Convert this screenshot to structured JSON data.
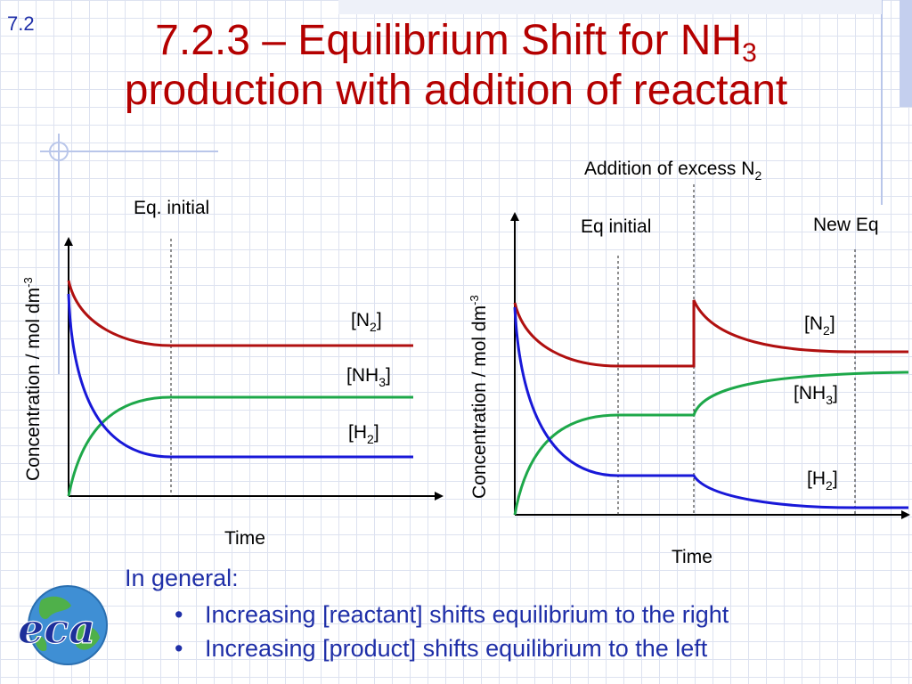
{
  "slide": {
    "number": "7.2"
  },
  "title": {
    "line1_main": "7.2.3 – Equilibrium Shift for NH",
    "line1_sub": "3",
    "line2": "production with addition of reactant"
  },
  "logo": {
    "icon": "globe-icon",
    "text": "eca"
  },
  "chart_data": [
    {
      "type": "line",
      "xlabel": "Time",
      "ylabel": "Concentration / mol dm",
      "ylabel_sup": "-3",
      "annotations": [
        {
          "label": "Eq. initial"
        }
      ],
      "series": [
        {
          "name": "N",
          "sub": "2",
          "color": "#b01010"
        },
        {
          "name": "NH",
          "sub": "3",
          "color": "#1ea84a"
        },
        {
          "name": "H",
          "sub": "2",
          "color": "#1818d8"
        }
      ]
    },
    {
      "type": "line",
      "title_main": "Addition of excess N",
      "title_sub": "2",
      "xlabel": "Time",
      "ylabel": "Concentration / mol dm",
      "ylabel_sup": "-3",
      "annotations": [
        {
          "label": "Eq initial"
        },
        {
          "label": "New Eq"
        }
      ],
      "series": [
        {
          "name": "N",
          "sub": "2",
          "color": "#b01010"
        },
        {
          "name": "NH",
          "sub": "3",
          "color": "#1ea84a"
        },
        {
          "name": "H",
          "sub": "2",
          "color": "#1818d8"
        }
      ]
    }
  ],
  "summary": {
    "heading": "In general:",
    "bullets": [
      "Increasing [reactant] shifts equilibrium to the right",
      "Increasing [product] shifts equilibrium to the left"
    ]
  }
}
